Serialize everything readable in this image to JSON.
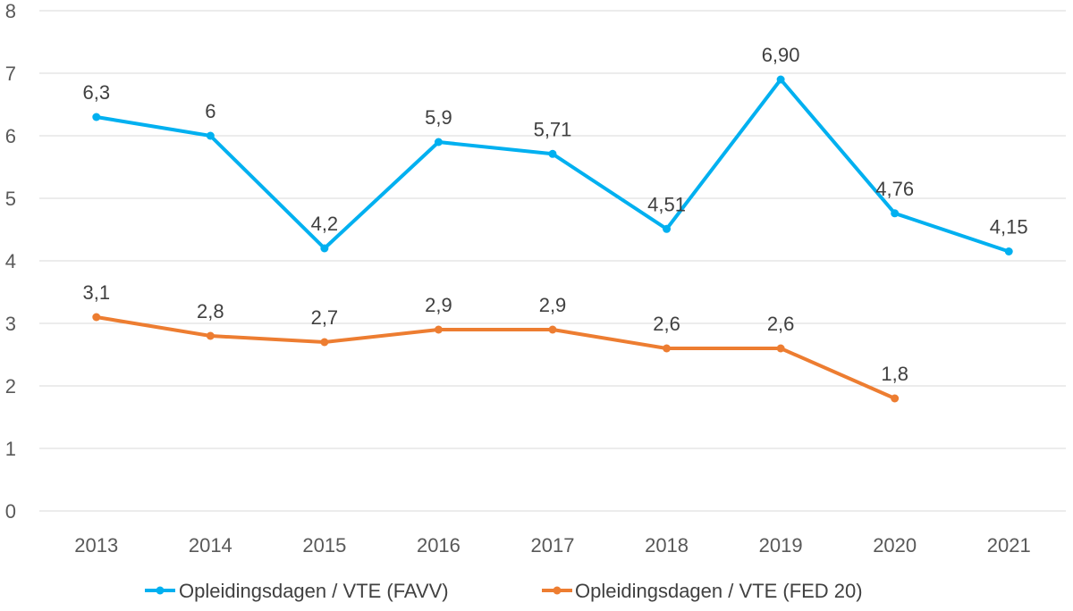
{
  "chart_data": {
    "type": "line",
    "title": "",
    "xlabel": "",
    "ylabel": "",
    "ylim": [
      0,
      8
    ],
    "yticks": [
      "0",
      "1",
      "2",
      "3",
      "4",
      "5",
      "6",
      "7",
      "8"
    ],
    "categories": [
      "2013",
      "2014",
      "2015",
      "2016",
      "2017",
      "2018",
      "2019",
      "2020",
      "2021"
    ],
    "grid": true,
    "legend_position": "bottom",
    "series": [
      {
        "name": "Opleidingsdagen / VTE (FAVV)",
        "color": "#00b0f0",
        "values": [
          6.3,
          6.0,
          4.2,
          5.9,
          5.71,
          4.51,
          6.9,
          4.76,
          4.15
        ],
        "labels": [
          "6,3",
          "6",
          "4,2",
          "5,9",
          "5,71",
          "4,51",
          "6,90",
          "4,76",
          "4,15"
        ]
      },
      {
        "name": "Opleidingsdagen / VTE (FED 20)",
        "color": "#ed7d31",
        "values": [
          3.1,
          2.8,
          2.7,
          2.9,
          2.9,
          2.6,
          2.6,
          1.8,
          null
        ],
        "labels": [
          "3,1",
          "2,8",
          "2,7",
          "2,9",
          "2,9",
          "2,6",
          "2,6",
          "1,8",
          null
        ]
      }
    ]
  }
}
